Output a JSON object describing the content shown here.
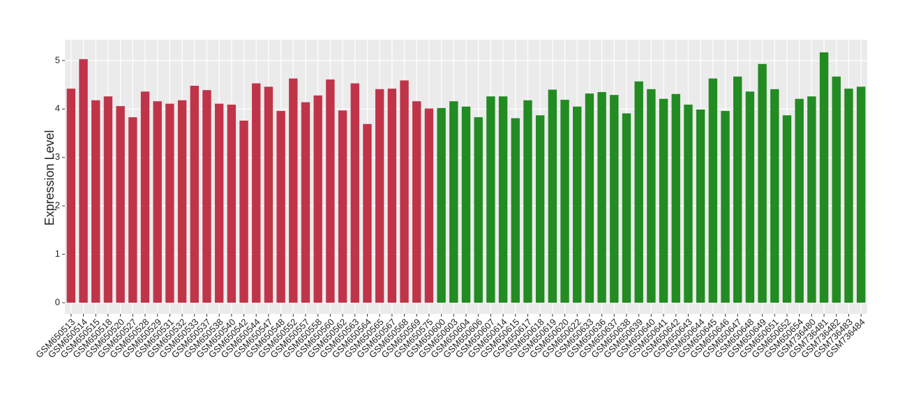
{
  "chart_data": {
    "type": "bar",
    "y_label": "Expression Level",
    "categories": [
      "GSM650513",
      "GSM650514",
      "GSM650515",
      "GSM650518",
      "GSM650520",
      "GSM650527",
      "GSM650528",
      "GSM650529",
      "GSM650531",
      "GSM650532",
      "GSM650533",
      "GSM650537",
      "GSM650538",
      "GSM650540",
      "GSM650542",
      "GSM650544",
      "GSM650547",
      "GSM650548",
      "GSM650552",
      "GSM650557",
      "GSM650558",
      "GSM650560",
      "GSM650562",
      "GSM650563",
      "GSM650564",
      "GSM650565",
      "GSM650567",
      "GSM650568",
      "GSM650569",
      "GSM650575",
      "GSM650600",
      "GSM650603",
      "GSM650604",
      "GSM650606",
      "GSM650607",
      "GSM650614",
      "GSM650615",
      "GSM650617",
      "GSM650618",
      "GSM650619",
      "GSM650620",
      "GSM650622",
      "GSM650633",
      "GSM650636",
      "GSM650637",
      "GSM650638",
      "GSM650639",
      "GSM650640",
      "GSM650641",
      "GSM650642",
      "GSM650643",
      "GSM650644",
      "GSM650645",
      "GSM650646",
      "GSM650647",
      "GSM650648",
      "GSM650649",
      "GSM650651",
      "GSM650652",
      "GSM650654",
      "GSM736480",
      "GSM736481",
      "GSM736482",
      "GSM736483",
      "GSM736484"
    ],
    "values": [
      4.42,
      5.03,
      4.18,
      4.26,
      4.06,
      3.83,
      4.36,
      4.16,
      4.11,
      4.18,
      4.48,
      4.39,
      4.11,
      4.09,
      3.76,
      4.53,
      4.46,
      3.96,
      4.63,
      4.14,
      4.28,
      4.61,
      3.97,
      4.53,
      3.69,
      4.41,
      4.42,
      4.59,
      4.16,
      4.01,
      4.02,
      4.16,
      4.05,
      3.83,
      4.26,
      4.26,
      3.81,
      4.18,
      3.87,
      4.4,
      4.19,
      4.05,
      4.32,
      4.35,
      4.29,
      3.91,
      4.57,
      4.41,
      4.21,
      4.31,
      4.09,
      3.99,
      4.63,
      3.96,
      4.67,
      4.36,
      4.93,
      4.41,
      3.87,
      4.21,
      4.26,
      5.17,
      4.67,
      4.42,
      4.46
    ],
    "colors": [
      "#c0344a",
      "#c0344a",
      "#c0344a",
      "#c0344a",
      "#c0344a",
      "#c0344a",
      "#c0344a",
      "#c0344a",
      "#c0344a",
      "#c0344a",
      "#c0344a",
      "#c0344a",
      "#c0344a",
      "#c0344a",
      "#c0344a",
      "#c0344a",
      "#c0344a",
      "#c0344a",
      "#c0344a",
      "#c0344a",
      "#c0344a",
      "#c0344a",
      "#c0344a",
      "#c0344a",
      "#c0344a",
      "#c0344a",
      "#c0344a",
      "#c0344a",
      "#c0344a",
      "#c0344a",
      "#228b22",
      "#228b22",
      "#228b22",
      "#228b22",
      "#228b22",
      "#228b22",
      "#228b22",
      "#228b22",
      "#228b22",
      "#228b22",
      "#228b22",
      "#228b22",
      "#228b22",
      "#228b22",
      "#228b22",
      "#228b22",
      "#228b22",
      "#228b22",
      "#228b22",
      "#228b22",
      "#228b22",
      "#228b22",
      "#228b22",
      "#228b22",
      "#228b22",
      "#228b22",
      "#228b22",
      "#228b22",
      "#228b22",
      "#228b22",
      "#228b22",
      "#228b22",
      "#228b22",
      "#228b22",
      "#228b22"
    ],
    "ylim": [
      -0.23,
      5.43
    ],
    "yticks": [
      0,
      1,
      2,
      3,
      4,
      5
    ],
    "grid": true
  }
}
